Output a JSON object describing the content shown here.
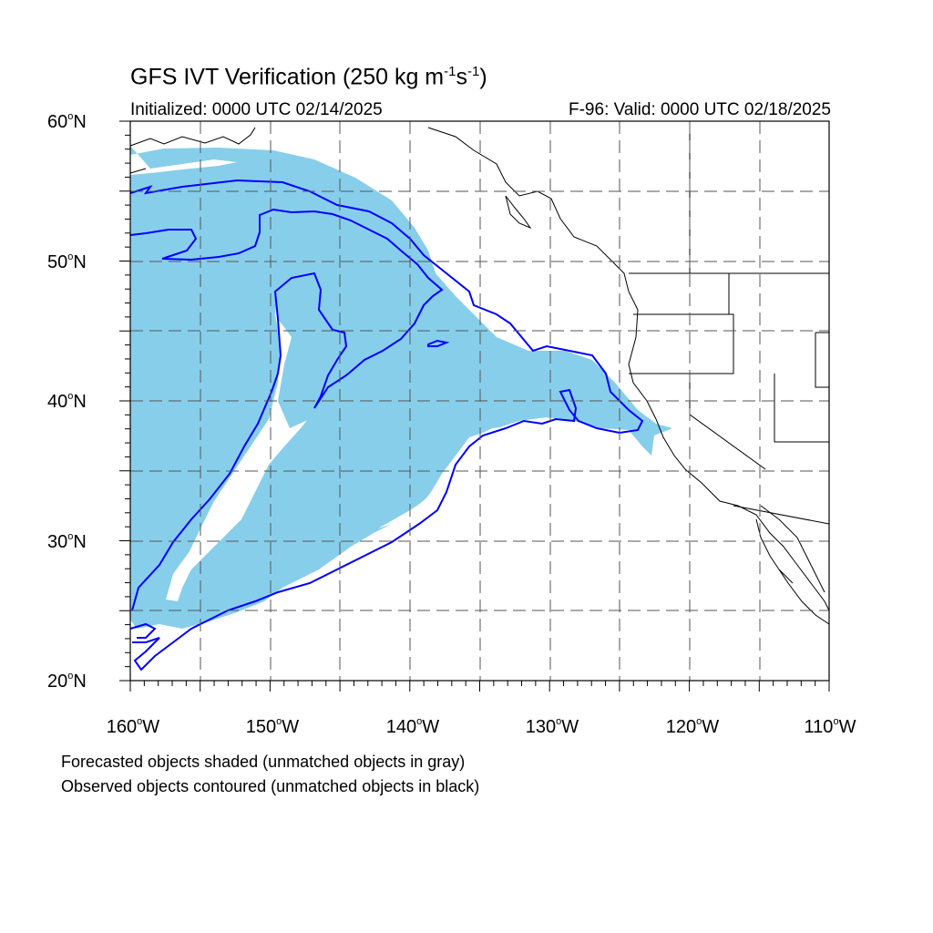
{
  "title": {
    "main": "GFS IVT Verification (250 kg m",
    "exp1": "-1",
    "mid": "s",
    "exp2": "-1",
    "end": ")"
  },
  "subtitle_left": "Initialized: 0000 UTC 02/14/2025",
  "subtitle_right": "F-96: Valid: 0000 UTC 02/18/2025",
  "lat_labels": [
    {
      "value": "60",
      "suffix": "N"
    },
    {
      "value": "50",
      "suffix": "N"
    },
    {
      "value": "40",
      "suffix": "N"
    },
    {
      "value": "30",
      "suffix": "N"
    },
    {
      "value": "20",
      "suffix": "N"
    }
  ],
  "lon_labels": [
    {
      "value": "160",
      "suffix": "W"
    },
    {
      "value": "150",
      "suffix": "W"
    },
    {
      "value": "140",
      "suffix": "W"
    },
    {
      "value": "130",
      "suffix": "W"
    },
    {
      "value": "120",
      "suffix": "W"
    },
    {
      "value": "110",
      "suffix": "W"
    }
  ],
  "notes": [
    "Forecasted objects shaded (unmatched objects in gray)",
    "Observed objects contoured (unmatched objects in black)"
  ],
  "degree_symbol": "o",
  "colors": {
    "forecast_fill": "#87ceeb",
    "observed_contour": "#0000ff",
    "coastline": "#000000",
    "grid": "#555555"
  },
  "map_extent": {
    "lon_min": -160,
    "lon_max": -110,
    "lat_min": 20,
    "lat_max": 60
  }
}
